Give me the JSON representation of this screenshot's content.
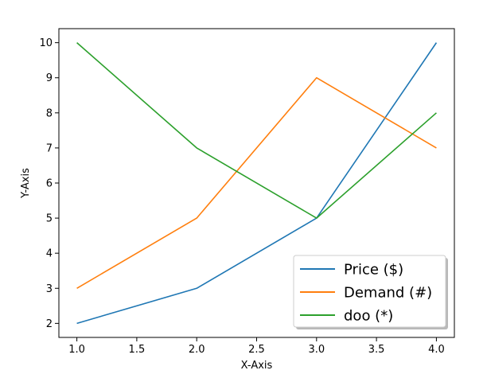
{
  "chart_data": {
    "type": "line",
    "x": [
      1.0,
      2.0,
      3.0,
      4.0
    ],
    "series": [
      {
        "name": "Price ($)",
        "values": [
          2,
          3,
          5,
          10
        ],
        "color": "#1f77b4"
      },
      {
        "name": "Demand (#)",
        "values": [
          3,
          5,
          9,
          7
        ],
        "color": "#ff7f0e"
      },
      {
        "name": "doo (*)",
        "values": [
          10,
          7,
          5,
          8
        ],
        "color": "#2ca02c"
      }
    ],
    "xlabel": "X-Axis",
    "ylabel": "Y-Axis",
    "xlim": [
      0.85,
      4.15
    ],
    "ylim": [
      1.6,
      10.4
    ],
    "xticks": [
      1.0,
      1.5,
      2.0,
      2.5,
      3.0,
      3.5,
      4.0
    ],
    "xtick_labels": [
      "1.0",
      "1.5",
      "2.0",
      "2.5",
      "3.0",
      "3.5",
      "4.0"
    ],
    "yticks": [
      2,
      3,
      4,
      5,
      6,
      7,
      8,
      9,
      10
    ],
    "ytick_labels": [
      "2",
      "3",
      "4",
      "5",
      "6",
      "7",
      "8",
      "9",
      "10"
    ],
    "grid": false,
    "legend_position": "lower-right"
  }
}
